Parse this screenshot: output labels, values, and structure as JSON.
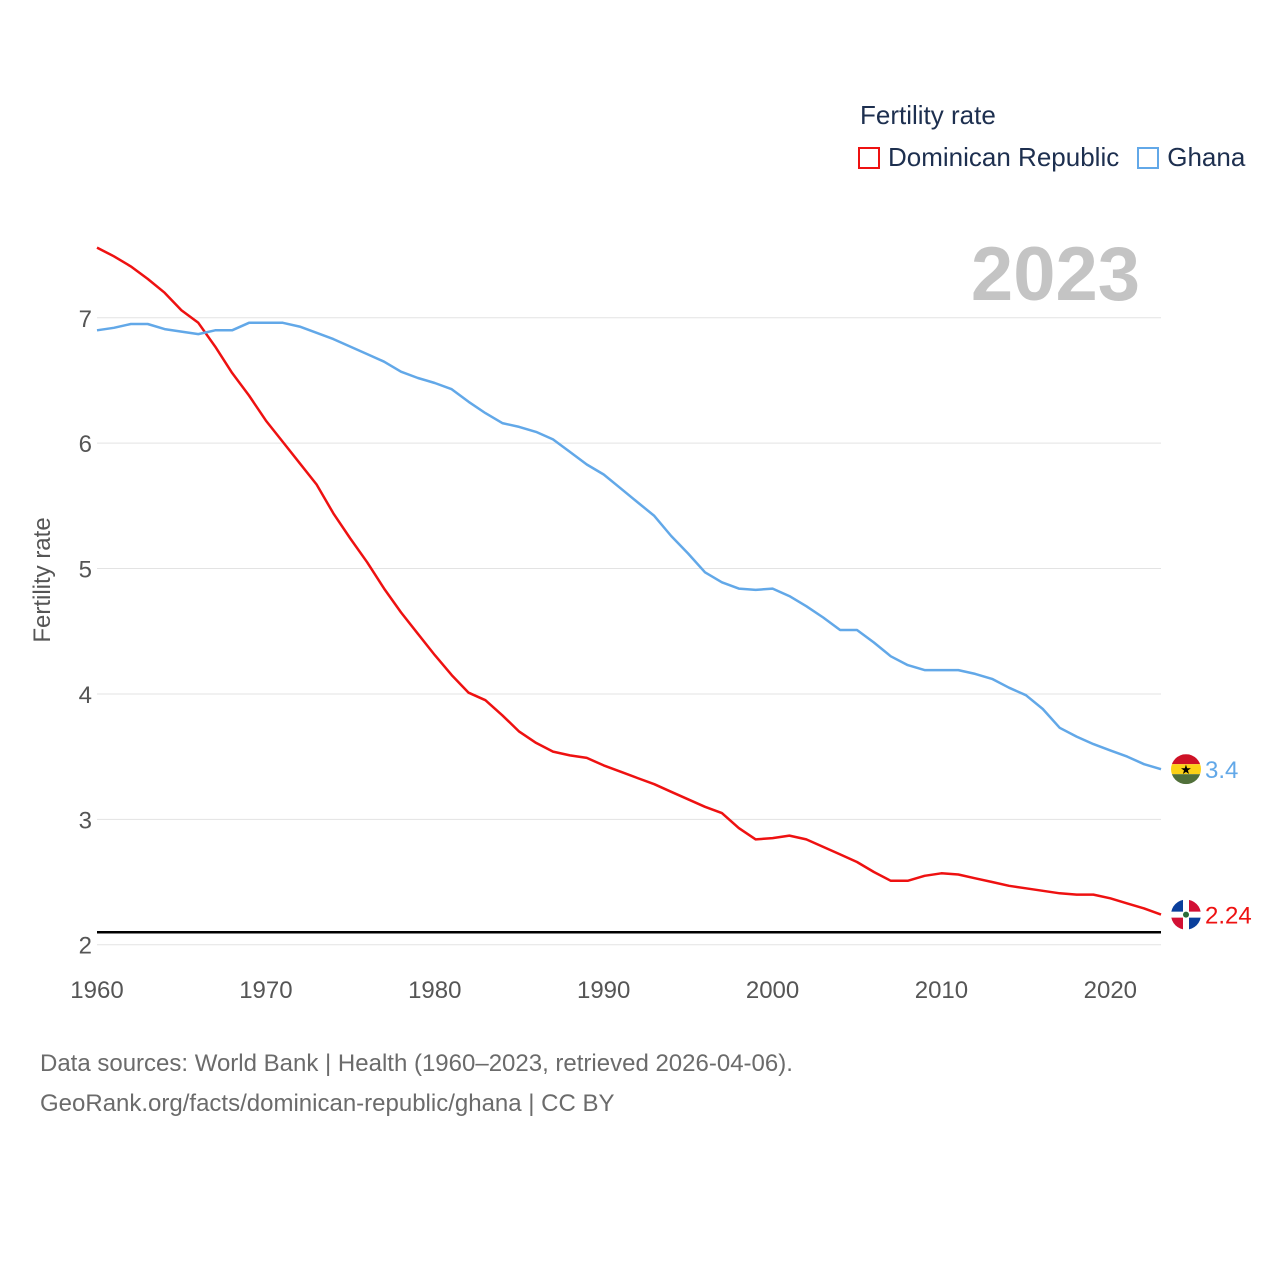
{
  "chart_data": {
    "type": "line",
    "title": "Fertility rate",
    "year_label": "2023",
    "ylabel": "Fertility rate",
    "xlabel": "",
    "xlim": [
      1960,
      2023
    ],
    "ylim": [
      1.95,
      7.7
    ],
    "xticks": [
      1960,
      1970,
      1980,
      1990,
      2000,
      2010,
      2020
    ],
    "yticks": [
      2,
      3,
      4,
      5,
      6,
      7
    ],
    "reference_line": 2.1,
    "x": [
      1960,
      1961,
      1962,
      1963,
      1964,
      1965,
      1966,
      1967,
      1968,
      1969,
      1970,
      1971,
      1972,
      1973,
      1974,
      1975,
      1976,
      1977,
      1978,
      1979,
      1980,
      1981,
      1982,
      1983,
      1984,
      1985,
      1986,
      1987,
      1988,
      1989,
      1990,
      1991,
      1992,
      1993,
      1994,
      1995,
      1996,
      1997,
      1998,
      1999,
      2000,
      2001,
      2002,
      2003,
      2004,
      2005,
      2006,
      2007,
      2008,
      2009,
      2010,
      2011,
      2012,
      2013,
      2014,
      2015,
      2016,
      2017,
      2018,
      2019,
      2020,
      2021,
      2022,
      2023
    ],
    "series": [
      {
        "name": "Dominican Republic",
        "color": "#ee1111",
        "end_label": "2.24",
        "values": [
          7.56,
          7.49,
          7.41,
          7.31,
          7.2,
          7.06,
          6.96,
          6.77,
          6.56,
          6.38,
          6.18,
          6.01,
          5.84,
          5.67,
          5.44,
          5.24,
          5.05,
          4.84,
          4.65,
          4.48,
          4.31,
          4.15,
          4.01,
          3.95,
          3.83,
          3.7,
          3.61,
          3.54,
          3.51,
          3.49,
          3.43,
          3.38,
          3.33,
          3.28,
          3.22,
          3.16,
          3.1,
          3.05,
          2.93,
          2.84,
          2.85,
          2.87,
          2.84,
          2.78,
          2.72,
          2.66,
          2.58,
          2.51,
          2.51,
          2.55,
          2.57,
          2.56,
          2.53,
          2.5,
          2.47,
          2.45,
          2.43,
          2.41,
          2.4,
          2.4,
          2.37,
          2.33,
          2.29,
          2.24
        ]
      },
      {
        "name": "Ghana",
        "color": "#62a8e8",
        "end_label": "3.4",
        "values": [
          6.9,
          6.92,
          6.95,
          6.95,
          6.91,
          6.89,
          6.87,
          6.9,
          6.9,
          6.96,
          6.96,
          6.96,
          6.93,
          6.88,
          6.83,
          6.77,
          6.71,
          6.65,
          6.57,
          6.52,
          6.48,
          6.43,
          6.33,
          6.24,
          6.16,
          6.13,
          6.09,
          6.03,
          5.93,
          5.83,
          5.75,
          5.64,
          5.53,
          5.42,
          5.26,
          5.12,
          4.97,
          4.89,
          4.84,
          4.83,
          4.84,
          4.78,
          4.7,
          4.61,
          4.51,
          4.51,
          4.41,
          4.3,
          4.23,
          4.19,
          4.19,
          4.19,
          4.16,
          4.12,
          4.05,
          3.99,
          3.88,
          3.73,
          3.66,
          3.6,
          3.55,
          3.5,
          3.44,
          3.4
        ]
      }
    ]
  },
  "legend": {
    "title": "Fertility rate",
    "items": [
      "Dominican Republic",
      "Ghana"
    ]
  },
  "footer": {
    "sources": "Data sources: World Bank | Health (1960–2023, retrieved 2026-04-06).",
    "credit": "GeoRank.org/facts/dominican-republic/ghana | CC BY"
  },
  "flags": {
    "dominican_republic": "dominican-republic-flag-icon",
    "ghana": "ghana-flag-icon"
  }
}
